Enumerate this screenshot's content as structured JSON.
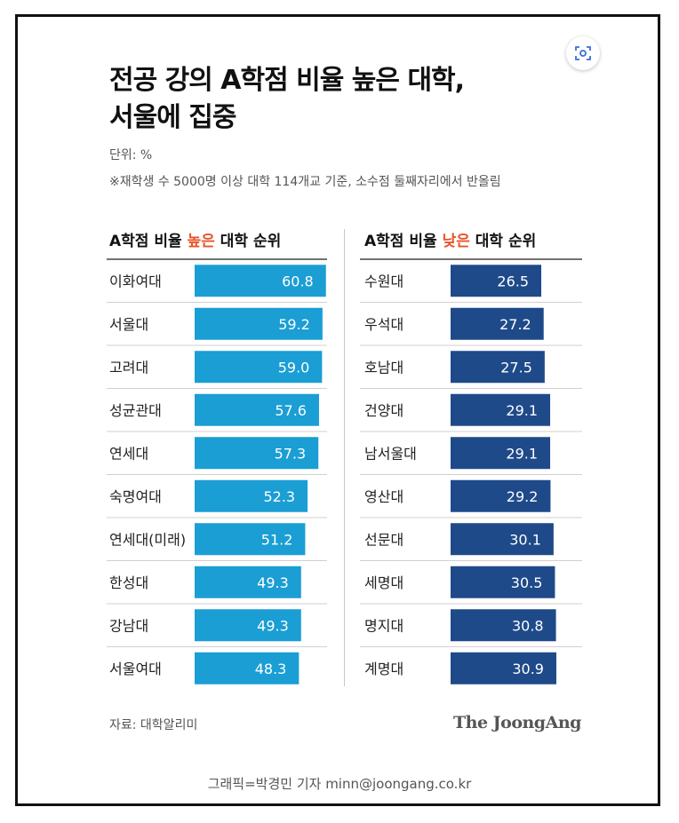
{
  "title_line1": "전공 강의 A학점 비율 높은 대학,",
  "title_line2": "서울에 집중",
  "unit": "단위: %",
  "note": "※재학생 수 5000명 이상 대학 114개교 기준, 소수점 둘째자리에서 반올림",
  "source": "자료: 대학알리미",
  "brand": "The JoongAng",
  "credit": "그래픽=박경민 기자 minn@joongang.co.kr",
  "colors": {
    "high_bar": "#1a9ed4",
    "low_bar": "#1f4a8a",
    "highlight": "#e8542a"
  },
  "chart_data": [
    {
      "type": "bar",
      "orientation": "horizontal",
      "title_prefix": "A학점 비율 ",
      "title_highlight": "높은",
      "title_suffix": " 대학 순위",
      "unit": "%",
      "categories": [
        "이화여대",
        "서울대",
        "고려대",
        "성균관대",
        "연세대",
        "숙명여대",
        "연세대(미래)",
        "한성대",
        "강남대",
        "서울여대"
      ],
      "values": [
        60.8,
        59.2,
        59.0,
        57.6,
        57.3,
        52.3,
        51.2,
        49.3,
        49.3,
        48.3
      ],
      "labels": [
        "60.8",
        "59.2",
        "59.0",
        "57.6",
        "57.3",
        "52.3",
        "51.2",
        "49.3",
        "49.3",
        "48.3"
      ],
      "xlim": [
        0,
        100
      ]
    },
    {
      "type": "bar",
      "orientation": "horizontal",
      "title_prefix": "A학점 비율 ",
      "title_highlight": "낮은",
      "title_suffix": " 대학 순위",
      "unit": "%",
      "categories": [
        "수원대",
        "우석대",
        "호남대",
        "건양대",
        "남서울대",
        "영산대",
        "선문대",
        "세명대",
        "명지대",
        "계명대"
      ],
      "values": [
        26.5,
        27.2,
        27.5,
        29.1,
        29.1,
        29.2,
        30.1,
        30.5,
        30.8,
        30.9
      ],
      "labels": [
        "26.5",
        "27.2",
        "27.5",
        "29.1",
        "29.1",
        "29.2",
        "30.1",
        "30.5",
        "30.8",
        "30.9"
      ],
      "xlim": [
        0,
        30.9
      ]
    }
  ]
}
